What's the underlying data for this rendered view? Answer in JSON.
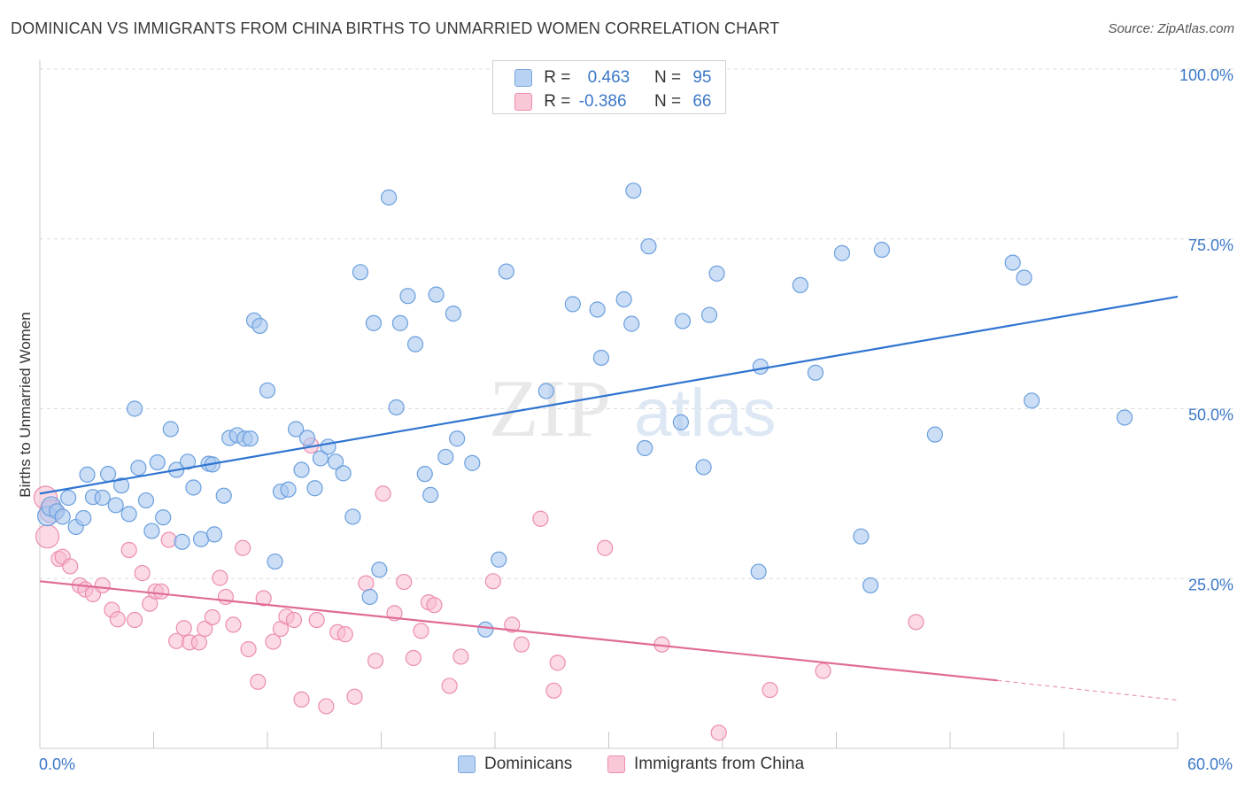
{
  "header": {
    "title": "DOMINICAN VS IMMIGRANTS FROM CHINA BIRTHS TO UNMARRIED WOMEN CORRELATION CHART",
    "source": "Source: ZipAtlas.com"
  },
  "watermark": {
    "zip": "ZIP",
    "atlas": "atlas"
  },
  "legend": {
    "r_label": "R =",
    "n_label": "N =",
    "rows": [
      {
        "r": "0.463",
        "n": "95",
        "color": "#b8d2f3",
        "border": "#7aa6de"
      },
      {
        "r": "-0.386",
        "n": "66",
        "color": "#f9c7d6",
        "border": "#ee8fad"
      }
    ]
  },
  "bottom_legend": [
    {
      "label": "Dominicans",
      "color": "#b8d2f3",
      "border": "#7aa6de"
    },
    {
      "label": "Immigrants from China",
      "color": "#f9c7d6",
      "border": "#ee8fad"
    }
  ],
  "colors": {
    "blue_fill": "#a9c8f0",
    "blue_stroke": "#6a9fde",
    "blue_line": "#2f74d0",
    "pink_fill": "#f7bcd0",
    "pink_stroke": "#ec8db0",
    "pink_line": "#e06b97",
    "tick_text": "#3b78c7",
    "grid": "#dddddd"
  },
  "chart_data": {
    "type": "scatter",
    "title": "DOMINICAN VS IMMIGRANTS FROM CHINA BIRTHS TO UNMARRIED WOMEN CORRELATION CHART",
    "xlabel": "",
    "ylabel": "Births to Unmarried Women",
    "xlim": [
      0,
      60
    ],
    "ylim": [
      0,
      100
    ],
    "y_ticks": [
      {
        "value": 25,
        "label": "25.0%"
      },
      {
        "value": 50,
        "label": "50.0%"
      },
      {
        "value": 75,
        "label": "75.0%"
      },
      {
        "value": 100,
        "label": "100.0%"
      }
    ],
    "x_tick_labels": [
      {
        "value": 0,
        "label": "0.0%"
      },
      {
        "value": 60,
        "label": "60.0%"
      }
    ],
    "x_minor_ticks": [
      0,
      6,
      12,
      18,
      24,
      30,
      36,
      42,
      48,
      54,
      60
    ],
    "grid": true,
    "legend_position": "top-center",
    "series": [
      {
        "name": "Dominicans",
        "points": [
          [
            0.4,
            34.2
          ],
          [
            0.6,
            35.6
          ],
          [
            0.9,
            34.9
          ],
          [
            1.2,
            34.1
          ],
          [
            1.5,
            36.9
          ],
          [
            1.9,
            32.6
          ],
          [
            2.3,
            33.9
          ],
          [
            2.5,
            40.3
          ],
          [
            2.8,
            37.0
          ],
          [
            3.3,
            36.9
          ],
          [
            3.6,
            40.4
          ],
          [
            4.0,
            35.8
          ],
          [
            4.3,
            38.7
          ],
          [
            4.7,
            34.5
          ],
          [
            5.0,
            50.0
          ],
          [
            5.2,
            41.3
          ],
          [
            5.6,
            36.5
          ],
          [
            5.9,
            32.0
          ],
          [
            6.2,
            42.1
          ],
          [
            6.5,
            34.0
          ],
          [
            6.9,
            47.0
          ],
          [
            7.2,
            41.0
          ],
          [
            7.5,
            30.4
          ],
          [
            7.8,
            42.2
          ],
          [
            8.1,
            38.4
          ],
          [
            8.5,
            30.8
          ],
          [
            8.9,
            41.9
          ],
          [
            9.2,
            31.5
          ],
          [
            9.7,
            37.2
          ],
          [
            10.0,
            45.7
          ],
          [
            10.4,
            46.1
          ],
          [
            10.8,
            45.6
          ],
          [
            11.3,
            63.0
          ],
          [
            11.6,
            62.2
          ],
          [
            12.0,
            52.7
          ],
          [
            12.4,
            27.5
          ],
          [
            12.7,
            37.8
          ],
          [
            13.1,
            38.1
          ],
          [
            13.5,
            47.0
          ],
          [
            13.8,
            41.0
          ],
          [
            14.1,
            45.7
          ],
          [
            14.5,
            38.3
          ],
          [
            14.8,
            42.7
          ],
          [
            15.2,
            44.4
          ],
          [
            15.6,
            42.2
          ],
          [
            16.0,
            40.5
          ],
          [
            16.5,
            34.1
          ],
          [
            16.9,
            70.1
          ],
          [
            17.4,
            22.3
          ],
          [
            17.6,
            62.6
          ],
          [
            17.9,
            26.3
          ],
          [
            18.4,
            81.1
          ],
          [
            18.8,
            50.2
          ],
          [
            19.0,
            62.6
          ],
          [
            19.4,
            66.6
          ],
          [
            19.8,
            59.5
          ],
          [
            20.3,
            40.4
          ],
          [
            20.6,
            37.3
          ],
          [
            20.9,
            66.8
          ],
          [
            21.4,
            42.9
          ],
          [
            21.8,
            64.0
          ],
          [
            22.0,
            45.6
          ],
          [
            22.8,
            42.0
          ],
          [
            23.5,
            17.5
          ],
          [
            24.2,
            27.8
          ],
          [
            24.6,
            70.2
          ],
          [
            26.7,
            52.6
          ],
          [
            28.1,
            65.4
          ],
          [
            29.4,
            64.6
          ],
          [
            29.6,
            57.5
          ],
          [
            30.8,
            66.1
          ],
          [
            31.2,
            62.5
          ],
          [
            31.9,
            44.2
          ],
          [
            31.3,
            82.1
          ],
          [
            32.1,
            73.9
          ],
          [
            33.8,
            48.0
          ],
          [
            33.9,
            62.9
          ],
          [
            35.0,
            41.4
          ],
          [
            35.3,
            63.8
          ],
          [
            35.7,
            69.9
          ],
          [
            37.9,
            26.0
          ],
          [
            38.0,
            56.2
          ],
          [
            40.1,
            68.2
          ],
          [
            40.9,
            55.3
          ],
          [
            42.3,
            72.9
          ],
          [
            43.3,
            31.2
          ],
          [
            43.8,
            24.0
          ],
          [
            44.4,
            73.4
          ],
          [
            47.2,
            46.2
          ],
          [
            51.3,
            71.5
          ],
          [
            51.9,
            69.3
          ],
          [
            52.3,
            51.2
          ],
          [
            57.2,
            48.7
          ],
          [
            9.1,
            41.8
          ],
          [
            11.1,
            45.6
          ]
        ]
      },
      {
        "name": "Immigrants from China",
        "points": [
          [
            0.3,
            36.9
          ],
          [
            0.4,
            31.2
          ],
          [
            0.6,
            34.9
          ],
          [
            1.0,
            27.9
          ],
          [
            1.2,
            28.2
          ],
          [
            1.6,
            26.8
          ],
          [
            2.1,
            24.0
          ],
          [
            2.4,
            23.4
          ],
          [
            2.8,
            22.7
          ],
          [
            3.3,
            24.0
          ],
          [
            3.8,
            20.4
          ],
          [
            4.1,
            19.0
          ],
          [
            4.7,
            29.2
          ],
          [
            5.0,
            18.9
          ],
          [
            5.4,
            25.8
          ],
          [
            5.8,
            21.3
          ],
          [
            6.1,
            23.1
          ],
          [
            6.4,
            23.1
          ],
          [
            6.8,
            30.7
          ],
          [
            7.2,
            15.8
          ],
          [
            7.6,
            17.7
          ],
          [
            7.9,
            15.6
          ],
          [
            8.4,
            15.6
          ],
          [
            8.7,
            17.6
          ],
          [
            9.1,
            19.3
          ],
          [
            9.5,
            25.1
          ],
          [
            9.8,
            22.3
          ],
          [
            10.2,
            18.2
          ],
          [
            10.7,
            29.5
          ],
          [
            11.0,
            14.6
          ],
          [
            11.5,
            9.8
          ],
          [
            11.8,
            22.1
          ],
          [
            12.3,
            15.7
          ],
          [
            12.7,
            17.6
          ],
          [
            13.0,
            19.4
          ],
          [
            13.4,
            18.9
          ],
          [
            13.8,
            7.2
          ],
          [
            14.3,
            44.6
          ],
          [
            14.6,
            18.9
          ],
          [
            15.1,
            6.2
          ],
          [
            15.7,
            17.1
          ],
          [
            16.1,
            16.8
          ],
          [
            16.6,
            7.6
          ],
          [
            17.2,
            24.3
          ],
          [
            17.7,
            12.9
          ],
          [
            18.1,
            37.5
          ],
          [
            18.7,
            19.9
          ],
          [
            19.2,
            24.5
          ],
          [
            19.7,
            13.3
          ],
          [
            20.1,
            17.3
          ],
          [
            20.5,
            21.5
          ],
          [
            20.8,
            21.1
          ],
          [
            21.6,
            9.2
          ],
          [
            22.2,
            13.5
          ],
          [
            23.9,
            24.6
          ],
          [
            24.9,
            18.2
          ],
          [
            25.4,
            15.3
          ],
          [
            26.4,
            33.8
          ],
          [
            27.1,
            8.5
          ],
          [
            27.3,
            12.6
          ],
          [
            29.8,
            29.5
          ],
          [
            32.8,
            15.3
          ],
          [
            35.8,
            2.3
          ],
          [
            38.5,
            8.6
          ],
          [
            41.3,
            11.4
          ],
          [
            46.2,
            18.6
          ]
        ]
      }
    ],
    "trend_lines": [
      {
        "series": "Dominicans",
        "x1": 0,
        "y1": 37.5,
        "x2": 60,
        "y2": 66.5
      },
      {
        "series": "Immigrants from China",
        "x1": 0,
        "y1": 24.6,
        "x2": 50.5,
        "y2": 10.0,
        "dashed_to": {
          "x": 60,
          "y": 7.1
        }
      }
    ]
  }
}
